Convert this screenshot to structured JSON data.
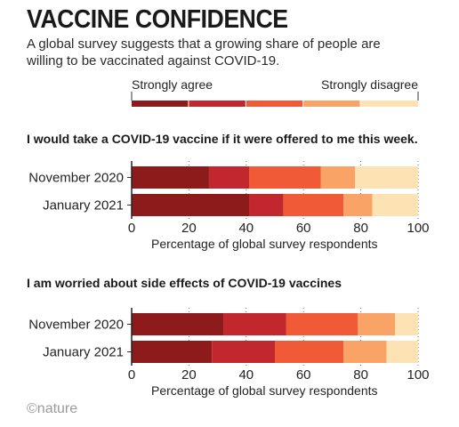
{
  "header": {
    "title": "VACCINE CONFIDENCE",
    "subtitle": "A global survey suggests that a growing share of people are willing to be vaccinated against COVID-19."
  },
  "legend": {
    "left_label": "Strongly agree",
    "right_label": "Strongly disagree"
  },
  "colors": [
    "#8e1b1b",
    "#c2272d",
    "#f15a36",
    "#f9a367",
    "#fde2b3"
  ],
  "chart_data": [
    {
      "type": "bar",
      "orientation": "horizontal",
      "stacked": true,
      "title": "I would take a COVID-19 vaccine if it were offered to me this week.",
      "categories": [
        "November 2020",
        "January 2021"
      ],
      "series": [
        {
          "values": [
            27,
            41
          ]
        },
        {
          "values": [
            14,
            12
          ]
        },
        {
          "values": [
            25,
            21
          ]
        },
        {
          "values": [
            12,
            10
          ]
        },
        {
          "values": [
            22,
            16
          ]
        }
      ],
      "xlabel": "Percentage of global survey respondents",
      "xlim": [
        0,
        100
      ],
      "xticks": [
        0,
        20,
        40,
        60,
        80,
        100
      ],
      "grid": "dotted vertical"
    },
    {
      "type": "bar",
      "orientation": "horizontal",
      "stacked": true,
      "title": "I am worried about side effects of COVID-19 vaccines",
      "categories": [
        "November 2020",
        "January 2021"
      ],
      "series": [
        {
          "values": [
            32,
            28
          ]
        },
        {
          "values": [
            22,
            22
          ]
        },
        {
          "values": [
            25,
            24
          ]
        },
        {
          "values": [
            13,
            15
          ]
        },
        {
          "values": [
            8,
            11
          ]
        }
      ],
      "xlabel": "Percentage of global survey respondents",
      "xlim": [
        0,
        100
      ],
      "xticks": [
        0,
        20,
        40,
        60,
        80,
        100
      ],
      "grid": "dotted vertical"
    }
  ],
  "footer": {
    "logo": "©nature"
  }
}
